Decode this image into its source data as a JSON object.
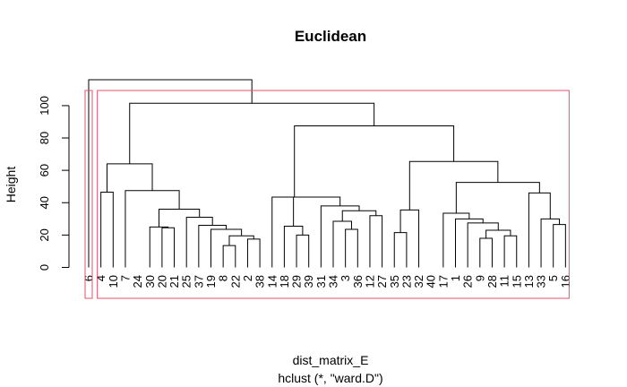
{
  "chart_data": {
    "type": "dendrogram",
    "title": "Euclidean",
    "ylabel": "Height",
    "xlabel": "dist_matrix_E",
    "sublabel": "hclust (*, \"ward.D\")",
    "ylim": [
      0,
      110
    ],
    "yticks": [
      "0",
      "20",
      "40",
      "60",
      "80",
      "100"
    ],
    "leaves": [
      "6",
      "4",
      "10",
      "7",
      "24",
      "30",
      "20",
      "21",
      "25",
      "37",
      "19",
      "8",
      "22",
      "2",
      "38",
      "14",
      "18",
      "29",
      "39",
      "31",
      "34",
      "3",
      "36",
      "12",
      "27",
      "35",
      "23",
      "32",
      "40",
      "17",
      "1",
      "26",
      "9",
      "28",
      "11",
      "15",
      "13",
      "33",
      "5",
      "16"
    ],
    "merges": [
      [
        -12,
        -13,
        13.5
      ],
      [
        -14,
        -15,
        17.5
      ],
      [
        1,
        2,
        19.5
      ],
      [
        -11,
        3,
        23.5
      ],
      [
        -10,
        4,
        26
      ],
      [
        -9,
        5,
        31
      ],
      [
        -7,
        -8,
        24.5
      ],
      [
        -6,
        7,
        25
      ],
      [
        6,
        8,
        36
      ],
      [
        -4,
        9,
        47.5
      ],
      [
        -2,
        -3,
        46.5
      ],
      [
        10,
        11,
        64
      ],
      [
        -18,
        -19,
        20
      ],
      [
        -17,
        13,
        25.5
      ],
      [
        -22,
        -23,
        23.5
      ],
      [
        -21,
        15,
        28.5
      ],
      [
        -24,
        -25,
        32
      ],
      [
        16,
        17,
        35
      ],
      [
        -20,
        18,
        38
      ],
      [
        14,
        19,
        43.5
      ],
      [
        -16,
        20,
        43.5
      ],
      [
        -26,
        -27,
        21.5
      ],
      [
        -28,
        22,
        35.5
      ],
      [
        -33,
        -34,
        18
      ],
      [
        -35,
        -36,
        19.5
      ],
      [
        24,
        25,
        23
      ],
      [
        -32,
        26,
        27.5
      ],
      [
        -31,
        27,
        30
      ],
      [
        -30,
        28,
        33.5
      ],
      [
        -39,
        -40,
        26.5
      ],
      [
        -38,
        30,
        30
      ],
      [
        -37,
        31,
        46
      ],
      [
        29,
        32,
        52.5
      ],
      [
        23,
        33,
        65.5
      ],
      [
        21,
        34,
        87.5
      ],
      [
        12,
        35,
        101.5
      ],
      [
        -1,
        36,
        116
      ]
    ],
    "rect_color": "#df536b",
    "rect_groups": [
      [
        1,
        1
      ],
      [
        2,
        40
      ]
    ]
  }
}
